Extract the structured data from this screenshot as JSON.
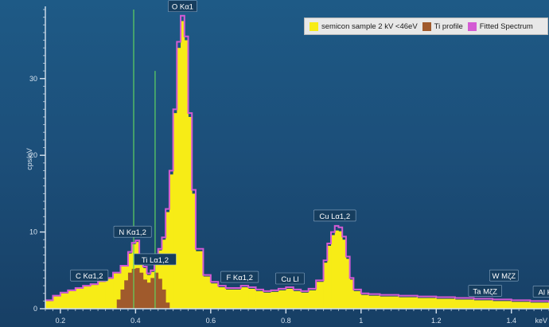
{
  "colors": {
    "sample": "#f7ec16",
    "ti_profile": "#a05a2c",
    "fitted": "#d45bd4",
    "marker": "#5fd35f",
    "axis": "#d6e2ee",
    "label_bg": "#163d5e"
  },
  "chart_data": {
    "type": "area",
    "xlabel": "keV",
    "ylabel": "cps/eV",
    "xlim": [
      0.16,
      1.5
    ],
    "ylim": [
      0,
      39
    ],
    "x_ticks": [
      0.2,
      0.4,
      0.6,
      0.8,
      1,
      1.2,
      1.4
    ],
    "x_tick_labels": [
      "0.2",
      "0.4",
      "0.6",
      "0.8",
      "1",
      "1.2",
      "1.4"
    ],
    "y_ticks": [
      0,
      10,
      20,
      30
    ],
    "y_tick_labels": [
      "0",
      "10",
      "20",
      "30"
    ],
    "grid": false,
    "legend_position": "top-right",
    "legend": [
      {
        "label": "semicon sample 2 kV <46eV",
        "color": "#f7ec16"
      },
      {
        "label": "Ti profile",
        "color": "#a05a2c"
      },
      {
        "label": "Fitted Spectrum",
        "color": "#d45bd4"
      }
    ],
    "series": [
      {
        "name": "semicon sample 2 kV <46eV",
        "kind": "histogram",
        "x": [
          0.16,
          0.18,
          0.2,
          0.22,
          0.24,
          0.26,
          0.28,
          0.3,
          0.32,
          0.34,
          0.36,
          0.38,
          0.39,
          0.4,
          0.41,
          0.42,
          0.43,
          0.44,
          0.45,
          0.46,
          0.47,
          0.48,
          0.49,
          0.5,
          0.51,
          0.52,
          0.53,
          0.54,
          0.55,
          0.56,
          0.58,
          0.6,
          0.62,
          0.64,
          0.66,
          0.68,
          0.7,
          0.72,
          0.74,
          0.76,
          0.78,
          0.8,
          0.82,
          0.84,
          0.86,
          0.88,
          0.9,
          0.91,
          0.92,
          0.93,
          0.94,
          0.95,
          0.96,
          0.97,
          0.98,
          1,
          1.02,
          1.05,
          1.1,
          1.15,
          1.2,
          1.25,
          1.3,
          1.35,
          1.4,
          1.45,
          1.5
        ],
        "y": [
          1,
          1.6,
          2,
          2.3,
          2.6,
          2.9,
          3.1,
          3.5,
          3.9,
          4.6,
          5.5,
          7.2,
          8.4,
          8.7,
          6.8,
          5.3,
          4.4,
          4.8,
          6,
          7.6,
          9,
          12.6,
          17.5,
          25.5,
          34,
          37.5,
          35,
          25,
          15,
          7.5,
          4.2,
          3.3,
          2.8,
          2.5,
          2.5,
          2.8,
          2.6,
          2.3,
          2.1,
          2.2,
          2.4,
          2.6,
          2.3,
          2.1,
          2.4,
          3.5,
          6,
          8.2,
          9.6,
          10.2,
          10.1,
          9,
          6.5,
          3.8,
          2.3,
          1.8,
          1.7,
          1.6,
          1.5,
          1.4,
          1.3,
          1.2,
          1.1,
          1,
          0.9,
          0.8,
          0.7
        ]
      },
      {
        "name": "Ti profile",
        "kind": "histogram",
        "x": [
          0.35,
          0.36,
          0.37,
          0.38,
          0.39,
          0.4,
          0.41,
          0.42,
          0.43,
          0.44,
          0.45,
          0.46,
          0.47,
          0.48
        ],
        "y": [
          1.2,
          2.5,
          3.7,
          4.7,
          5.2,
          5.3,
          4.7,
          3.8,
          3.4,
          4,
          4.7,
          3.9,
          2.5,
          0.8
        ]
      },
      {
        "name": "Fitted Spectrum",
        "kind": "line",
        "x": [
          0.16,
          0.18,
          0.2,
          0.22,
          0.24,
          0.26,
          0.28,
          0.3,
          0.32,
          0.34,
          0.36,
          0.38,
          0.39,
          0.4,
          0.41,
          0.42,
          0.43,
          0.44,
          0.45,
          0.46,
          0.47,
          0.48,
          0.49,
          0.5,
          0.51,
          0.52,
          0.53,
          0.54,
          0.55,
          0.56,
          0.58,
          0.6,
          0.62,
          0.64,
          0.66,
          0.68,
          0.7,
          0.72,
          0.74,
          0.76,
          0.78,
          0.8,
          0.82,
          0.84,
          0.86,
          0.88,
          0.9,
          0.91,
          0.92,
          0.93,
          0.94,
          0.95,
          0.96,
          0.97,
          0.98,
          1,
          1.02,
          1.05,
          1.1,
          1.15,
          1.2,
          1.25,
          1.3,
          1.35,
          1.4,
          1.45,
          1.5
        ],
        "y": [
          1.1,
          1.7,
          2.1,
          2.4,
          2.7,
          3,
          3.2,
          3.6,
          4,
          4.7,
          5.6,
          7.4,
          8.6,
          8.9,
          7,
          5.5,
          4.6,
          5,
          6.2,
          7.8,
          9.3,
          13,
          18,
          26,
          34.8,
          38.2,
          35.5,
          25.5,
          15.5,
          7.8,
          4.4,
          3.5,
          3,
          2.7,
          2.7,
          3,
          2.8,
          2.5,
          2.3,
          2.4,
          2.6,
          2.8,
          2.5,
          2.3,
          2.6,
          3.7,
          6.3,
          8.5,
          10,
          10.8,
          10.6,
          9.4,
          6.8,
          4,
          2.5,
          2,
          1.9,
          1.8,
          1.7,
          1.6,
          1.5,
          1.4,
          1.3,
          1.2,
          1.1,
          1,
          0.9
        ]
      }
    ],
    "markers": [
      {
        "x": 0.395,
        "y": 39
      },
      {
        "x": 0.452,
        "y": 31
      }
    ],
    "annotations": [
      {
        "label": "C Kα1,2",
        "x": 0.277,
        "y": 3.2
      },
      {
        "label": "N Kα1,2",
        "x": 0.392,
        "y": 8.9
      },
      {
        "label": "Ti Lα1,2",
        "x": 0.452,
        "y": 5.3
      },
      {
        "label": "O Kα1",
        "x": 0.525,
        "y": 38.3
      },
      {
        "label": "F Kα1,2",
        "x": 0.677,
        "y": 3
      },
      {
        "label": "Cu Ll",
        "x": 0.811,
        "y": 2.8
      },
      {
        "label": "Cu Lα1,2",
        "x": 0.93,
        "y": 11
      },
      {
        "label": "Ta MζZ",
        "x": 1.33,
        "y": 1.2
      },
      {
        "label": "W MζZ",
        "x": 1.38,
        "y": 3.2
      },
      {
        "label": "Al K",
        "x": 1.49,
        "y": 1.1
      }
    ]
  }
}
